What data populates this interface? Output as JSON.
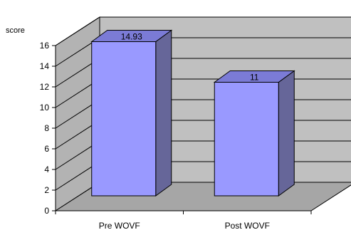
{
  "chart_data": {
    "type": "bar",
    "ylabel": "score",
    "categories": [
      "Pre WOVF",
      "Post WOVF"
    ],
    "values": [
      14.93,
      11
    ],
    "data_labels": [
      "14.93",
      "11"
    ],
    "ylim": [
      0,
      16
    ],
    "yticks": [
      0,
      2,
      4,
      6,
      8,
      10,
      12,
      14,
      16
    ],
    "ytick_labels": [
      "0",
      "2",
      "4",
      "6",
      "8",
      "10",
      "12",
      "14",
      "16"
    ],
    "grid": true,
    "legend": "none",
    "style": "3d",
    "colors": {
      "bar_front": "#9999ff",
      "bar_side": "#666699",
      "bar_top": "#7b7bd6",
      "back_wall": "#c0c0c0",
      "side_wall": "#b3b3b3",
      "floor": "#a6a6a6"
    }
  }
}
